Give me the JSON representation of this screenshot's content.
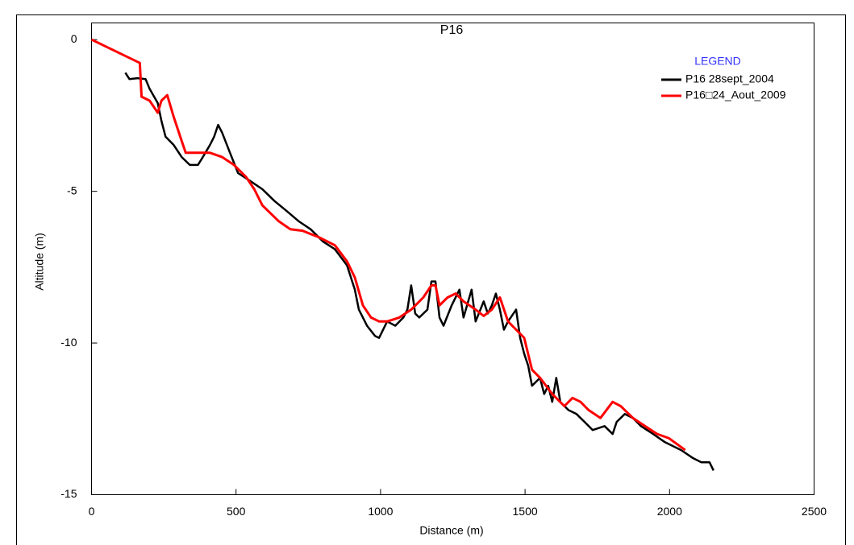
{
  "chart_data": {
    "type": "line",
    "title": "P16",
    "xlabel": "Distance (m)",
    "ylabel": "Altitude (m)",
    "legend_title": "LEGEND",
    "legend_title_color": "#3333ff",
    "legend": "upper right",
    "xlim": [
      0,
      2500
    ],
    "xticks": [
      0,
      500,
      1000,
      1500,
      2000,
      2500
    ],
    "ylim": [
      -15,
      0.55
    ],
    "yticks": [
      0,
      -5,
      -10,
      -15
    ],
    "series": [
      {
        "name": "P16 28sept_2004",
        "color": "#000000",
        "x": [
          117,
          131,
          159,
          187,
          201,
          229,
          242,
          256,
          284,
          312,
          340,
          368,
          382,
          410,
          424,
          438,
          452,
          479,
          507,
          549,
          591,
          633,
          674,
          716,
          758,
          800,
          842,
          884,
          911,
          925,
          953,
          981,
          995,
          1023,
          1051,
          1079,
          1093,
          1106,
          1120,
          1134,
          1162,
          1176,
          1190,
          1204,
          1218,
          1246,
          1273,
          1287,
          1315,
          1329,
          1357,
          1371,
          1385,
          1399,
          1413,
          1427,
          1441,
          1469,
          1483,
          1497,
          1511,
          1524,
          1552,
          1566,
          1580,
          1594,
          1608,
          1622,
          1650,
          1678,
          1706,
          1734,
          1775,
          1803,
          1817,
          1845,
          1873,
          1901,
          1943,
          1984,
          2040,
          2082,
          2110,
          2138,
          2152
        ],
        "values": [
          -1.09,
          -1.3,
          -1.27,
          -1.3,
          -1.62,
          -2.09,
          -2.68,
          -3.2,
          -3.47,
          -3.87,
          -4.13,
          -4.13,
          -3.92,
          -3.47,
          -3.2,
          -2.81,
          -3.07,
          -3.73,
          -4.4,
          -4.66,
          -4.93,
          -5.32,
          -5.64,
          -5.98,
          -6.25,
          -6.65,
          -6.91,
          -7.44,
          -8.24,
          -8.9,
          -9.43,
          -9.77,
          -9.83,
          -9.29,
          -9.43,
          -9.16,
          -8.9,
          -8.1,
          -9.03,
          -9.16,
          -8.9,
          -7.97,
          -7.97,
          -9.16,
          -9.43,
          -8.76,
          -8.24,
          -9.16,
          -8.24,
          -9.29,
          -8.63,
          -9.03,
          -8.76,
          -8.37,
          -8.9,
          -9.56,
          -9.29,
          -8.9,
          -9.83,
          -10.35,
          -10.75,
          -11.41,
          -11.15,
          -11.68,
          -11.41,
          -11.94,
          -11.15,
          -11.94,
          -12.21,
          -12.34,
          -12.6,
          -12.87,
          -12.74,
          -13.0,
          -12.6,
          -12.34,
          -12.47,
          -12.74,
          -13.0,
          -13.27,
          -13.53,
          -13.8,
          -13.93,
          -13.93,
          -14.2
        ]
      },
      {
        "name": "P16□24_Aout_2009",
        "color": "#ff0000",
        "x": [
          0,
          167,
          173,
          201,
          229,
          242,
          262,
          284,
          312,
          326,
          354,
          410,
          452,
          493,
          535,
          563,
          591,
          619,
          647,
          688,
          730,
          786,
          842,
          884,
          911,
          939,
          967,
          995,
          1023,
          1065,
          1106,
          1148,
          1176,
          1190,
          1204,
          1232,
          1260,
          1287,
          1329,
          1357,
          1385,
          1413,
          1441,
          1469,
          1497,
          1524,
          1552,
          1594,
          1636,
          1664,
          1692,
          1720,
          1761,
          1803,
          1831,
          1873,
          1915,
          1957,
          1998,
          2054
        ],
        "values": [
          0,
          -0.77,
          -1.88,
          -2.01,
          -2.41,
          -2.01,
          -1.83,
          -2.54,
          -3.34,
          -3.73,
          -3.73,
          -3.73,
          -3.87,
          -4.13,
          -4.53,
          -4.93,
          -5.46,
          -5.72,
          -5.98,
          -6.25,
          -6.3,
          -6.51,
          -6.78,
          -7.31,
          -7.84,
          -8.76,
          -9.16,
          -9.29,
          -9.29,
          -9.16,
          -8.9,
          -8.5,
          -8.1,
          -8.1,
          -8.76,
          -8.5,
          -8.37,
          -8.63,
          -8.9,
          -9.11,
          -8.9,
          -8.5,
          -9.29,
          -9.56,
          -9.83,
          -10.88,
          -11.15,
          -11.68,
          -12.08,
          -11.81,
          -11.94,
          -12.21,
          -12.47,
          -11.94,
          -12.08,
          -12.47,
          -12.74,
          -13.0,
          -13.14,
          -13.53
        ]
      }
    ]
  }
}
